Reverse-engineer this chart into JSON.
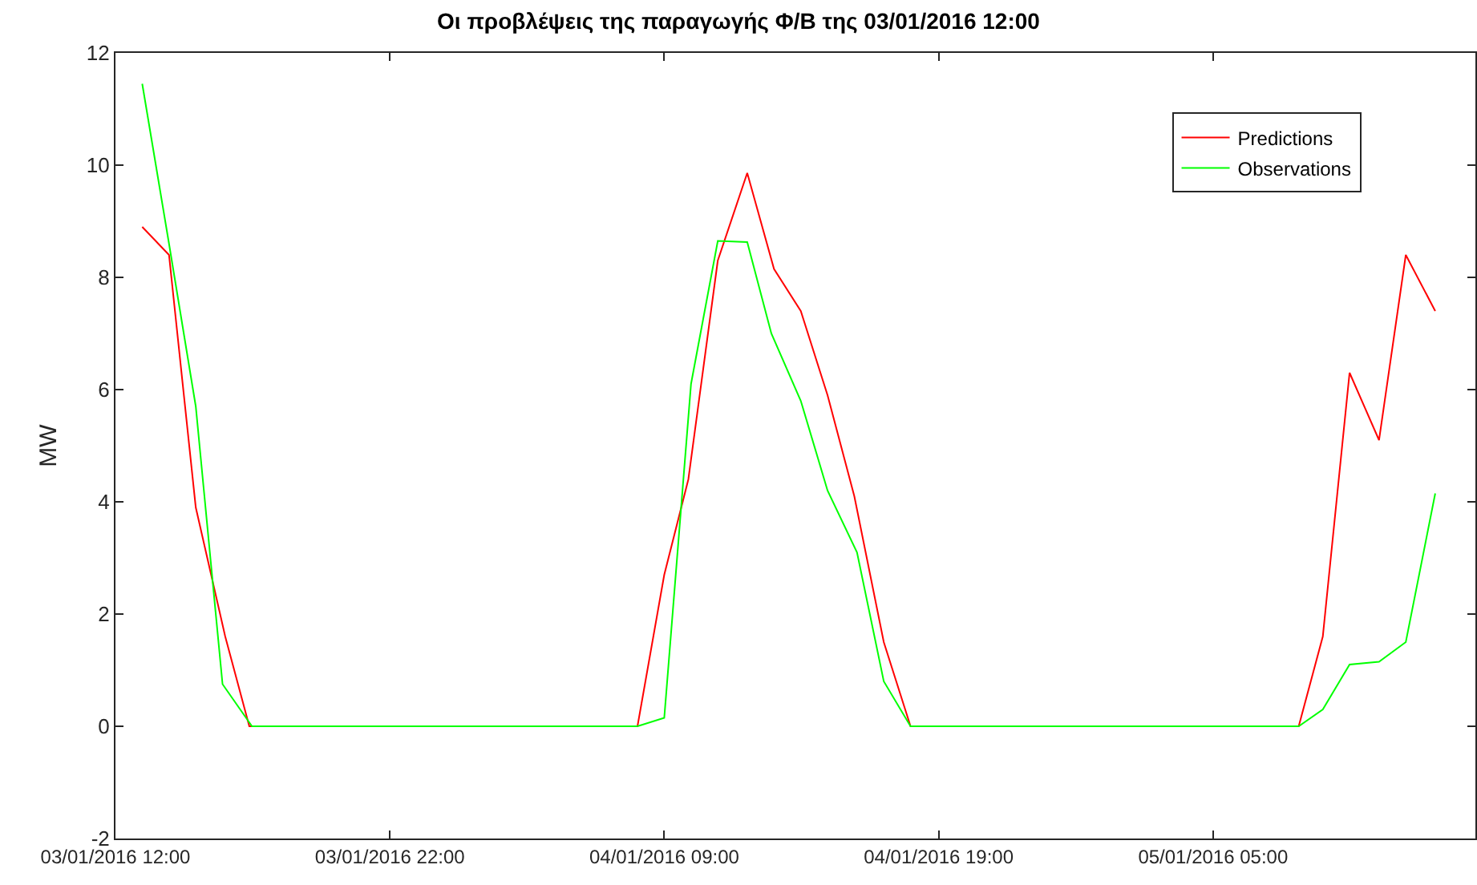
{
  "chart_data": {
    "type": "line",
    "title": "Οι προβλέψεις της παραγωγής Φ/Β της 03/01/2016 12:00",
    "ylabel": "MW",
    "xlim": [
      "2016-01-03T12:00",
      "2016-01-05T14:48"
    ],
    "xticks": [
      {
        "value": "2016-01-03T12:00",
        "label": "03/01/2016 12:00"
      },
      {
        "value": "2016-01-03T22:15",
        "label": "03/01/2016 22:00"
      },
      {
        "value": "2016-01-04T08:30",
        "label": "04/01/2016 09:00"
      },
      {
        "value": "2016-01-04T18:45",
        "label": "04/01/2016 19:00"
      },
      {
        "value": "2016-01-05T05:00",
        "label": "05/01/2016 05:00"
      }
    ],
    "ylim": [
      -2,
      12
    ],
    "yticks": [
      -2,
      0,
      2,
      4,
      6,
      8,
      10,
      12
    ],
    "grid": false,
    "legend": "top right",
    "marker": "none",
    "line_style": "solid",
    "series": [
      {
        "name": "Predictions",
        "color": "#ff0000",
        "x": [
          "2016-01-03T13:00",
          "2016-01-03T14:00",
          "2016-01-03T15:00",
          "2016-01-03T16:06",
          "2016-01-03T17:00",
          "2016-01-03T17:42",
          "2016-01-04T07:30",
          "2016-01-04T08:30",
          "2016-01-04T09:24",
          "2016-01-04T10:30",
          "2016-01-04T11:36",
          "2016-01-04T12:36",
          "2016-01-04T13:36",
          "2016-01-04T14:36",
          "2016-01-04T15:36",
          "2016-01-04T16:42",
          "2016-01-04T17:42",
          "2016-01-04T18:42",
          "2016-01-05T07:30",
          "2016-01-05T08:12",
          "2016-01-05T09:06",
          "2016-01-05T10:06",
          "2016-01-05T11:12",
          "2016-01-05T12:12",
          "2016-01-05T13:18"
        ],
        "values": [
          8.9,
          8.4,
          3.9,
          1.6,
          0,
          0,
          0,
          2.7,
          4.4,
          8.3,
          9.86,
          8.15,
          7.4,
          5.9,
          4.1,
          1.5,
          0,
          0,
          0,
          0,
          1.6,
          6.3,
          5.1,
          8.4,
          7.4
        ]
      },
      {
        "name": "Observations",
        "color": "#00ff00",
        "x": [
          "2016-01-03T13:00",
          "2016-01-03T14:00",
          "2016-01-03T15:00",
          "2016-01-03T16:00",
          "2016-01-03T17:06",
          "2016-01-04T07:30",
          "2016-01-04T08:30",
          "2016-01-04T09:30",
          "2016-01-04T10:30",
          "2016-01-04T11:36",
          "2016-01-04T12:30",
          "2016-01-04T13:36",
          "2016-01-04T14:36",
          "2016-01-04T15:42",
          "2016-01-04T16:42",
          "2016-01-04T17:42",
          "2016-01-05T08:12",
          "2016-01-05T09:06",
          "2016-01-05T10:06",
          "2016-01-05T11:12",
          "2016-01-05T12:12",
          "2016-01-05T13:18"
        ],
        "values": [
          11.45,
          8.6,
          5.7,
          0.75,
          0,
          0,
          0.15,
          6.1,
          8.65,
          8.63,
          7.0,
          5.8,
          4.2,
          3.1,
          0.8,
          0,
          0,
          0.3,
          1.1,
          1.15,
          1.5,
          4.15
        ]
      }
    ]
  }
}
